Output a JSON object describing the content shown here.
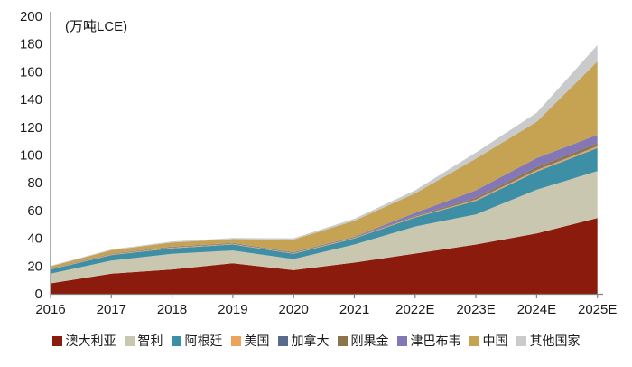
{
  "chart_data": {
    "type": "area",
    "stacked": true,
    "title": "",
    "unit_label": "(万吨LCE)",
    "categories": [
      "2016",
      "2017",
      "2018",
      "2019",
      "2020",
      "2021",
      "2022E",
      "2023E",
      "2024E",
      "2025E"
    ],
    "series": [
      {
        "name": "澳大利亚",
        "color": "#8B1B0D",
        "values": [
          7.5,
          14.5,
          17.5,
          22.0,
          17.0,
          22.5,
          29.0,
          35.5,
          43.5,
          54.5
        ]
      },
      {
        "name": "智利",
        "color": "#CAC7B1",
        "values": [
          7.0,
          9.4,
          11.3,
          9.2,
          8.0,
          13.0,
          19.5,
          21.7,
          31.5,
          34.0
        ]
      },
      {
        "name": "阿根廷",
        "color": "#3D8FA6",
        "values": [
          3.0,
          4.0,
          4.0,
          4.3,
          3.8,
          4.4,
          6.5,
          9.8,
          13.0,
          16.5
        ]
      },
      {
        "name": "美国",
        "color": "#EAA45C",
        "values": [
          0.4,
          0.5,
          0.6,
          0.5,
          0.5,
          0.5,
          0.6,
          0.8,
          1.2,
          1.3
        ]
      },
      {
        "name": "加拿大",
        "color": "#5A6A8D",
        "values": [
          0.3,
          0.3,
          0.4,
          0.4,
          0.4,
          0.4,
          0.4,
          0.5,
          0.5,
          0.5
        ]
      },
      {
        "name": "刚果金",
        "color": "#8C7349",
        "values": [
          0.1,
          0.1,
          0.1,
          0.1,
          0.1,
          0.1,
          0.2,
          0.9,
          1.6,
          1.7
        ]
      },
      {
        "name": "津巴布韦",
        "color": "#8377B6",
        "values": [
          0.1,
          0.1,
          0.1,
          0.1,
          0.2,
          0.2,
          2.1,
          5.4,
          6.5,
          6.1
        ]
      },
      {
        "name": "中国",
        "color": "#C6A253",
        "values": [
          1.3,
          2.5,
          3.0,
          2.8,
          9.0,
          11.5,
          14.1,
          22.8,
          26.2,
          52.8
        ]
      },
      {
        "name": "其他国家",
        "color": "#C9CACC",
        "values": [
          0.5,
          0.5,
          0.7,
          0.8,
          1.0,
          1.5,
          2.2,
          4.4,
          6.5,
          11.8
        ]
      }
    ],
    "y_axis": {
      "min": 0,
      "max": 200,
      "step": 20,
      "tick_labels": [
        "0",
        "20",
        "40",
        "60",
        "80",
        "100",
        "120",
        "140",
        "160",
        "180",
        "200"
      ]
    },
    "x_axis": {
      "tick_labels": [
        "2016",
        "2017",
        "2018",
        "2019",
        "2020",
        "2021",
        "2022E",
        "2023E",
        "2024E",
        "2025E"
      ]
    },
    "legend_position": "bottom",
    "grid": false
  },
  "colors": {
    "axis": "#7f7f7f",
    "text": "#1a1a1a",
    "background": "#ffffff"
  }
}
